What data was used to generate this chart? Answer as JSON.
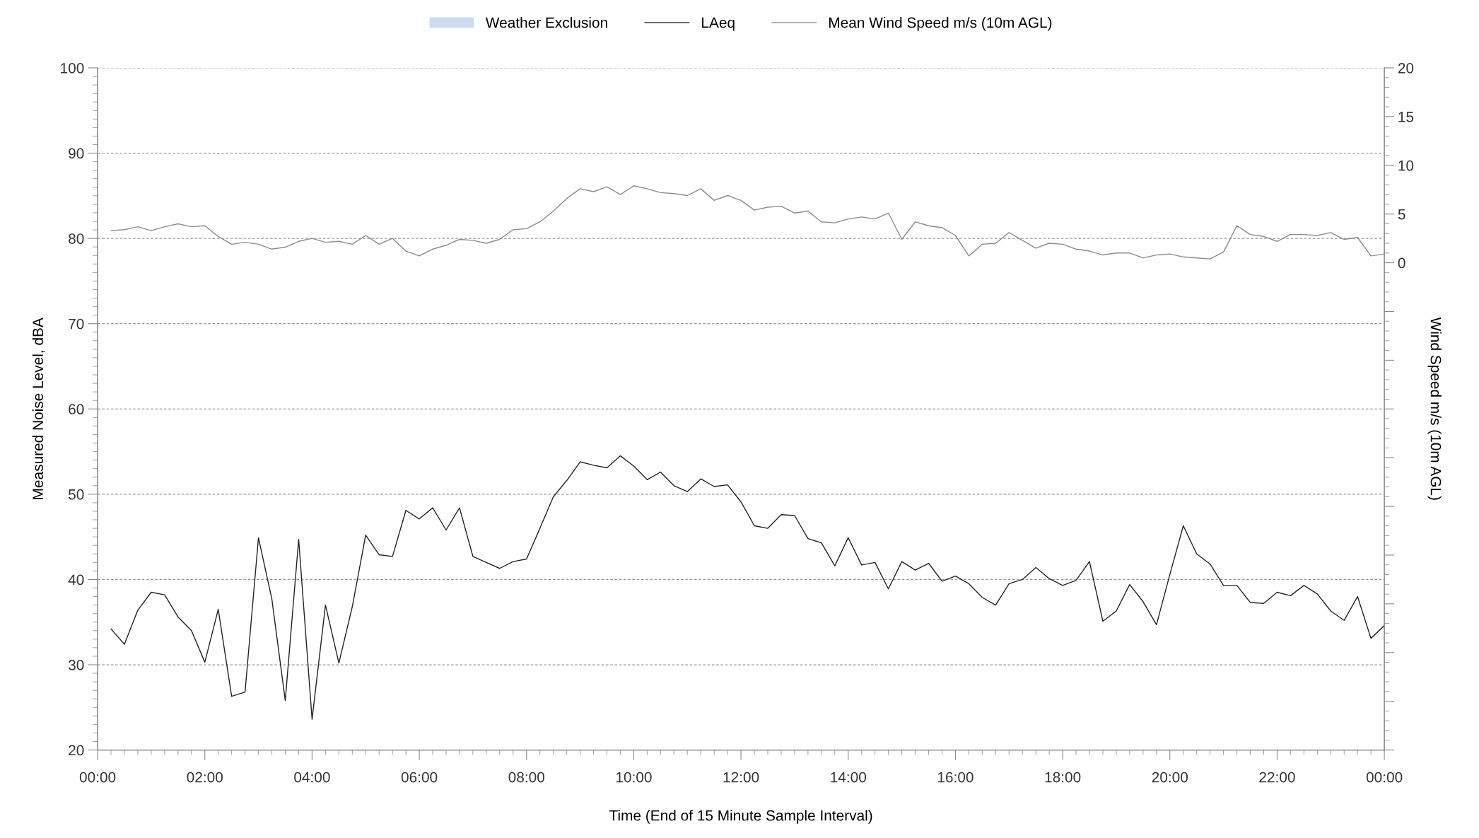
{
  "chart_data": {
    "type": "line",
    "xlabel": "Time (End of 15 Minute Sample Interval)",
    "ylabel": "Measured Noise Level, dBA",
    "y2label": "Wind Speed m/s (10m AGL)",
    "x": [
      0.25,
      0.5,
      0.75,
      1,
      1.25,
      1.5,
      1.75,
      2,
      2.25,
      2.5,
      2.75,
      3,
      3.25,
      3.5,
      3.75,
      4,
      4.25,
      4.5,
      4.75,
      5,
      5.25,
      5.5,
      5.75,
      6,
      6.25,
      6.5,
      6.75,
      7,
      7.25,
      7.5,
      7.75,
      8,
      8.25,
      8.5,
      8.75,
      9,
      9.25,
      9.5,
      9.75,
      10,
      10.25,
      10.5,
      10.75,
      11,
      11.25,
      11.5,
      11.75,
      12,
      12.25,
      12.5,
      12.75,
      13,
      13.25,
      13.5,
      13.75,
      14,
      14.25,
      14.5,
      14.75,
      15,
      15.25,
      15.5,
      15.75,
      16,
      16.25,
      16.5,
      16.75,
      17,
      17.25,
      17.5,
      17.75,
      18,
      18.25,
      18.5,
      18.75,
      19,
      19.25,
      19.5,
      19.75,
      20,
      20.25,
      20.5,
      20.75,
      21,
      21.25,
      21.5,
      21.75,
      22,
      22.25,
      22.5,
      22.75,
      23,
      23.25,
      23.5,
      23.75,
      24
    ],
    "series": [
      {
        "name": "Weather Exclusion",
        "type": "bar",
        "color": "#cdd9ee",
        "values": [
          null,
          null,
          null,
          null,
          null,
          null,
          null,
          null,
          null,
          null,
          null,
          null,
          null,
          null,
          null,
          null,
          null,
          null,
          null,
          null,
          null,
          null,
          null,
          null,
          null,
          null,
          null,
          null,
          null,
          null,
          null,
          null,
          null,
          null,
          null,
          null,
          null,
          null,
          null,
          null,
          null,
          null,
          null,
          null,
          null,
          null,
          null,
          null,
          null,
          null,
          null,
          null,
          null,
          null,
          null,
          null,
          null,
          null,
          null,
          null,
          null,
          null,
          null,
          null,
          null,
          null,
          null,
          null,
          null,
          null,
          null,
          null,
          null,
          null,
          null,
          null,
          null,
          null,
          null,
          null,
          null,
          null,
          null,
          null,
          null,
          null,
          null,
          null,
          null,
          null,
          null,
          null,
          null,
          null,
          null,
          null
        ]
      },
      {
        "name": "LAeq",
        "color": "#222222",
        "values": [
          34.2,
          32.4,
          36.4,
          38.5,
          38.2,
          35.6,
          34.0,
          30.3,
          36.5,
          26.3,
          26.8,
          44.9,
          37.7,
          25.8,
          44.7,
          23.6,
          37.0,
          30.2,
          36.8,
          45.2,
          42.9,
          42.7,
          48.1,
          47.1,
          48.4,
          45.8,
          48.4,
          42.7,
          42.0,
          41.3,
          42.1,
          42.4,
          46.0,
          49.7,
          51.6,
          53.8,
          53.4,
          53.1,
          54.5,
          53.3,
          51.7,
          52.6,
          51.0,
          50.3,
          51.8,
          50.9,
          51.1,
          49.1,
          46.3,
          46.0,
          47.6,
          47.5,
          44.8,
          44.3,
          41.6,
          44.9,
          41.7,
          42.0,
          38.9,
          42.1,
          41.1,
          41.9,
          39.8,
          40.4,
          39.5,
          37.9,
          37.0,
          39.5,
          40.0,
          41.4,
          40.1,
          39.3,
          39.9,
          42.1,
          35.1,
          36.3,
          39.4,
          37.4,
          34.7,
          40.6,
          46.3,
          43.0,
          41.8,
          39.3,
          39.3,
          37.3,
          37.2,
          38.5,
          38.1,
          39.3,
          38.3,
          36.3,
          35.2,
          38.0,
          33.1,
          34.6
        ]
      },
      {
        "name": "Mean Wind Speed m/s (10m AGL)",
        "axis": "y2",
        "color": "#8c8c8c",
        "values": [
          3.3,
          3.4,
          3.7,
          3.3,
          3.7,
          4.0,
          3.7,
          3.8,
          2.7,
          1.9,
          2.1,
          1.9,
          1.4,
          1.6,
          2.2,
          2.5,
          2.1,
          2.2,
          1.9,
          2.8,
          1.9,
          2.5,
          1.2,
          0.7,
          1.4,
          1.8,
          2.4,
          2.3,
          2.0,
          2.4,
          3.4,
          3.5,
          4.2,
          5.3,
          6.6,
          7.6,
          7.3,
          7.8,
          7.0,
          7.9,
          7.6,
          7.2,
          7.1,
          6.9,
          7.6,
          6.4,
          6.9,
          6.4,
          5.4,
          5.7,
          5.8,
          5.1,
          5.3,
          4.2,
          4.1,
          4.5,
          4.7,
          4.5,
          5.1,
          2.4,
          4.2,
          3.8,
          3.6,
          2.8,
          0.7,
          1.9,
          2.0,
          3.1,
          2.3,
          1.5,
          2.0,
          1.9,
          1.4,
          1.2,
          0.8,
          1.0,
          1.0,
          0.5,
          0.8,
          0.9,
          0.6,
          0.5,
          0.4,
          1.1,
          3.8,
          2.9,
          2.7,
          2.2,
          2.9,
          2.9,
          2.8,
          3.1,
          2.4,
          2.6,
          0.7,
          0.9
        ]
      }
    ],
    "xlim": [
      0,
      24
    ],
    "xticks": [
      {
        "value": 0,
        "label": "00:00"
      },
      {
        "value": 2,
        "label": "02:00"
      },
      {
        "value": 4,
        "label": "04:00"
      },
      {
        "value": 6,
        "label": "06:00"
      },
      {
        "value": 8,
        "label": "08:00"
      },
      {
        "value": 10,
        "label": "10:00"
      },
      {
        "value": 12,
        "label": "12:00"
      },
      {
        "value": 14,
        "label": "14:00"
      },
      {
        "value": 16,
        "label": "16:00"
      },
      {
        "value": 18,
        "label": "18:00"
      },
      {
        "value": 20,
        "label": "20:00"
      },
      {
        "value": 22,
        "label": "22:00"
      },
      {
        "value": 24,
        "label": "00:00"
      }
    ],
    "ylim": [
      20,
      100
    ],
    "yticks": [
      20,
      30,
      40,
      50,
      60,
      70,
      80,
      90,
      100
    ],
    "y2lim": [
      -50,
      20
    ],
    "y2ticks": [
      {
        "value": -50,
        "label": null
      },
      {
        "value": -45,
        "label": null
      },
      {
        "value": -40,
        "label": null
      },
      {
        "value": -35,
        "label": null
      },
      {
        "value": -30,
        "label": null
      },
      {
        "value": -25,
        "label": null
      },
      {
        "value": -20,
        "label": null
      },
      {
        "value": -15,
        "label": null
      },
      {
        "value": -10,
        "label": null
      },
      {
        "value": -5,
        "label": null
      },
      0,
      5,
      10,
      15,
      20
    ],
    "grid": "y",
    "legend": "top",
    "marker": "none",
    "line_style": "solid"
  }
}
